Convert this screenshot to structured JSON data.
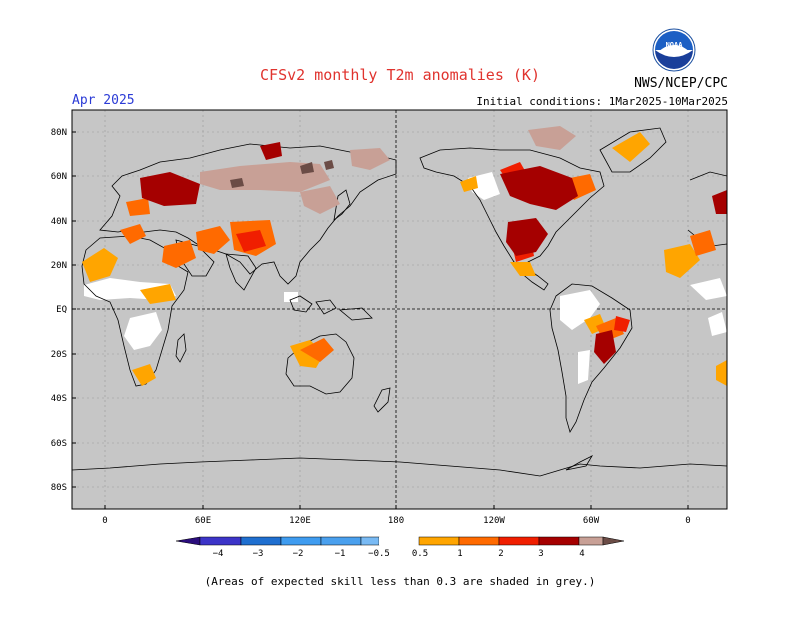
{
  "header": {
    "title": "CFSv2 monthly T2m anomalies (K)",
    "month": "Apr 2025",
    "agency": "NWS/NCEP/CPC",
    "initial_conditions": "Initial conditions: 1Mar2025-10Mar2025",
    "logo_text": "NOAA"
  },
  "map": {
    "lat_labels": [
      "80N",
      "60N",
      "40N",
      "20N",
      "EQ",
      "20S",
      "40S",
      "60S",
      "80S"
    ],
    "lon_labels": [
      "0",
      "60E",
      "120E",
      "180",
      "120W",
      "60W",
      "0"
    ],
    "background_color": "#c6c6c6",
    "low_skill_color": "#ffffff",
    "coastline_color": "#000000"
  },
  "legend": {
    "ticks": [
      "−4",
      "−3",
      "−2",
      "−1",
      "−0.5",
      "0.5",
      "1",
      "2",
      "3",
      "4"
    ],
    "colors": {
      "lt_-4": "#2b0d7d",
      "-4_-3": "#3c34c8",
      "-3_-2": "#1f6fd0",
      "-2_-1": "#3f9cf0",
      "-1_-0.5": "#79baf4",
      "neutral": "#ffffff",
      "0.5_1": "#ffa500",
      "1_2": "#ff6a00",
      "2_3": "#f01e00",
      "3_4": "#a50000",
      "4_5": "#c8a096",
      "gt_5": "#6b4c46"
    }
  },
  "footnote": "(Areas of expected skill less than 0.3 are shaded in grey.)"
}
